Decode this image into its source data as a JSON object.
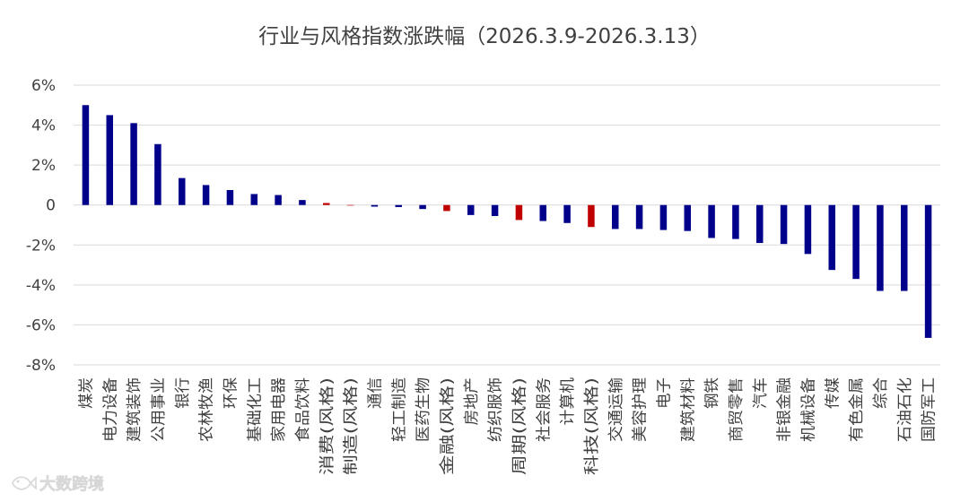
{
  "chart_data": {
    "type": "bar",
    "title": "行业与风格指数涨跌幅（2026.3.9-2026.3.13）",
    "xlabel": "",
    "ylabel": "",
    "y_unit": "%",
    "ylim": [
      -8,
      6
    ],
    "yticks": [
      6,
      4,
      2,
      0,
      -2,
      -4,
      -6,
      -8
    ],
    "ytick_labels": [
      "6%",
      "4%",
      "2%",
      "0",
      "-2%",
      "-4%",
      "-6%",
      "-8%"
    ],
    "grid": true,
    "legend": "none",
    "colors": {
      "industry": "#00008b",
      "style": "#c00000"
    },
    "categories": [
      "煤炭",
      "电力设备",
      "建筑装饰",
      "公用事业",
      "银行",
      "农林牧渔",
      "环保",
      "基础化工",
      "家用电器",
      "食品饮料",
      "消费(风格)",
      "制造(风格)",
      "通信",
      "轻工制造",
      "医药生物",
      "金融(风格)",
      "房地产",
      "纺织服饰",
      "周期(风格)",
      "社会服务",
      "计算机",
      "科技(风格)",
      "交通运输",
      "美容护理",
      "电子",
      "建筑材料",
      "钢铁",
      "商贸零售",
      "汽车",
      "非银金融",
      "机械设备",
      "传媒",
      "有色金属",
      "综合",
      "石油石化",
      "国防军工"
    ],
    "values": [
      5.0,
      4.5,
      4.1,
      3.05,
      1.35,
      1.0,
      0.75,
      0.55,
      0.5,
      0.25,
      0.1,
      0.0,
      -0.08,
      -0.1,
      -0.2,
      -0.3,
      -0.5,
      -0.55,
      -0.75,
      -0.8,
      -0.9,
      -1.1,
      -1.2,
      -1.2,
      -1.25,
      -1.3,
      -1.65,
      -1.7,
      -1.9,
      -1.95,
      -2.45,
      -3.25,
      -3.7,
      -4.3,
      -4.3,
      -6.65
    ],
    "bar_kind": [
      "industry",
      "industry",
      "industry",
      "industry",
      "industry",
      "industry",
      "industry",
      "industry",
      "industry",
      "industry",
      "style",
      "style",
      "industry",
      "industry",
      "industry",
      "style",
      "industry",
      "industry",
      "style",
      "industry",
      "industry",
      "style",
      "industry",
      "industry",
      "industry",
      "industry",
      "industry",
      "industry",
      "industry",
      "industry",
      "industry",
      "industry",
      "industry",
      "industry",
      "industry",
      "industry"
    ]
  },
  "watermark": {
    "icon": "fish-logo-icon",
    "text": "大数跨境"
  }
}
